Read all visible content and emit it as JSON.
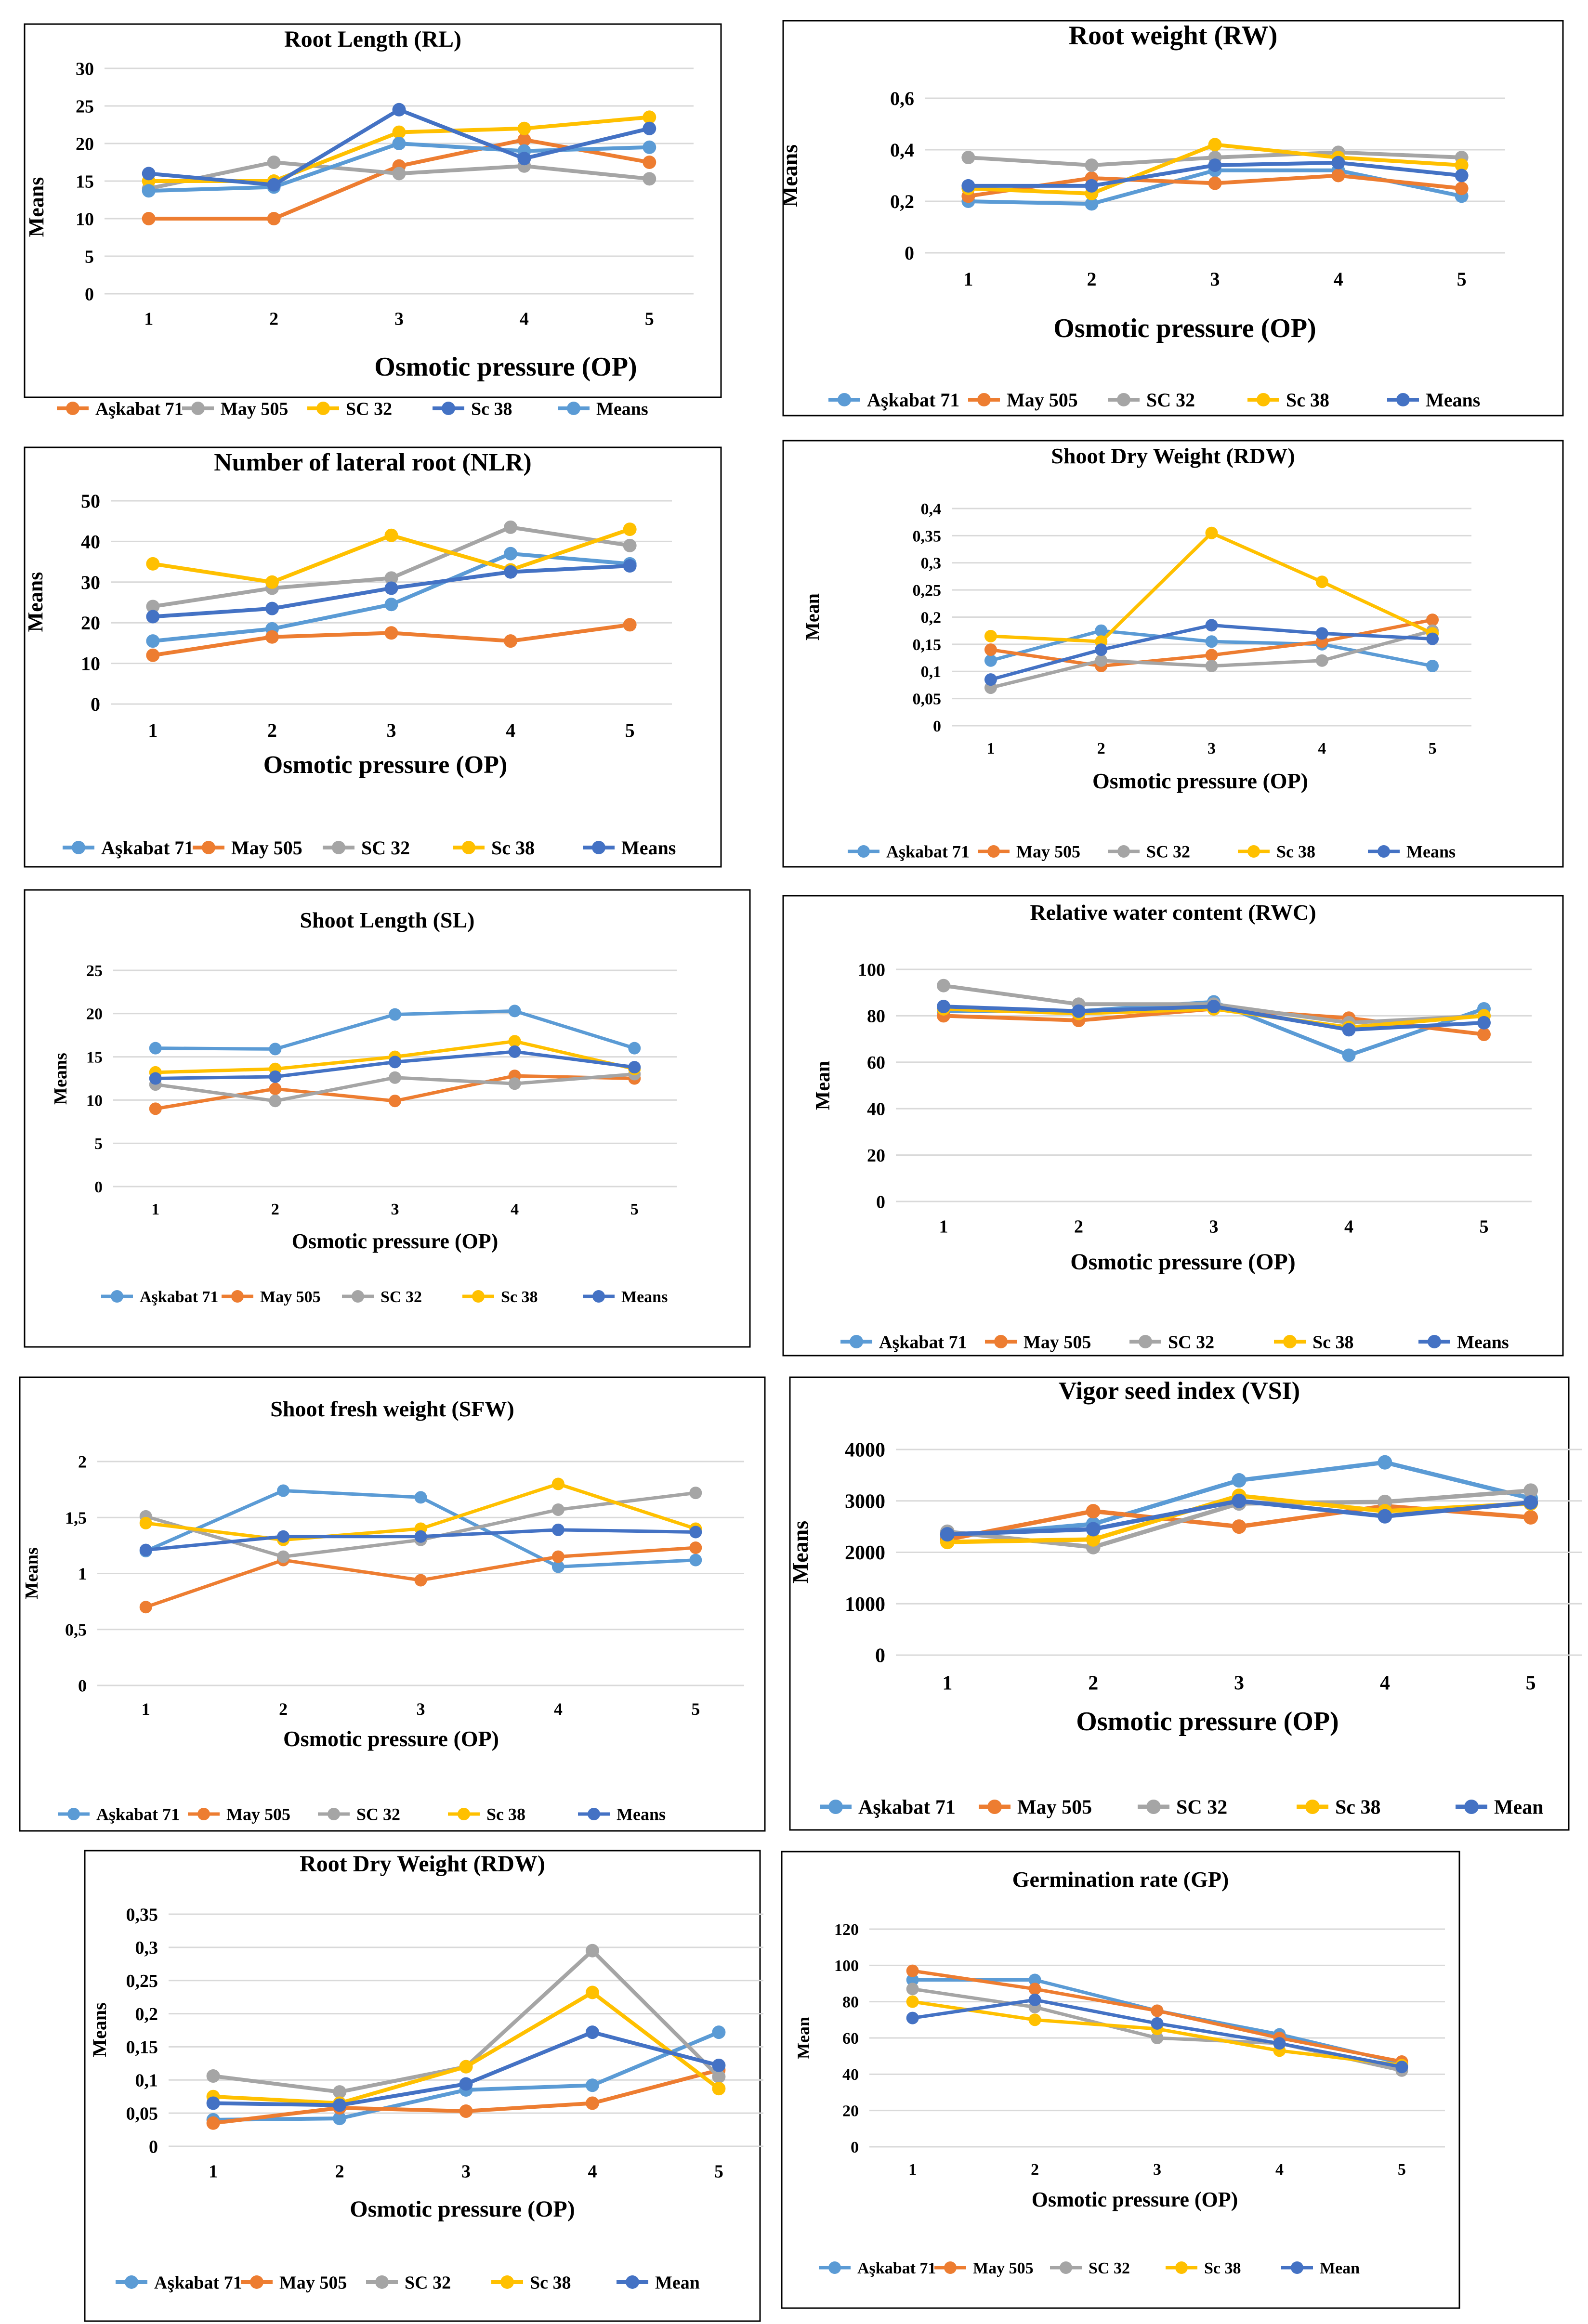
{
  "colors": {
    "Askabat": "#5B9BD5",
    "May": "#ED7D31",
    "SC32": "#A5A5A5",
    "Sc38": "#FFC000",
    "Means": "#4472C4"
  },
  "chart_data": [
    {
      "type": "line",
      "title": "Root Length (RL)",
      "xlabel": "Osmotic pressure (OP)",
      "ylabel": "Means",
      "categories": [
        "1",
        "2",
        "3",
        "4",
        "5"
      ],
      "yticks": [
        "0",
        "5",
        "10",
        "15",
        "20",
        "25",
        "30"
      ],
      "ylim": [
        0,
        30
      ],
      "series": [
        {
          "name": "Aşkabat 71",
          "color": "May",
          "values": [
            10,
            10,
            17,
            20.5,
            17.5
          ]
        },
        {
          "name": "May 505",
          "color": "SC32",
          "values": [
            14,
            17.5,
            16,
            17,
            15.3
          ]
        },
        {
          "name": "SC 32",
          "color": "Sc38",
          "values": [
            15,
            15,
            21.5,
            22,
            23.5
          ]
        },
        {
          "name": "Sc 38",
          "color": "Means",
          "values": [
            16,
            14.5,
            24.5,
            18,
            22
          ]
        },
        {
          "name": "Means",
          "color": "Askabat",
          "values": [
            13.7,
            14.2,
            20,
            19,
            19.5
          ]
        }
      ],
      "draw_order": [
        0,
        1,
        2,
        4,
        3
      ]
    },
    {
      "type": "line",
      "title": "Root weight (RW)",
      "xlabel": "Osmotic pressure (OP)",
      "ylabel": "Means",
      "categories": [
        "1",
        "2",
        "3",
        "4",
        "5"
      ],
      "yticks": [
        "0",
        "0,2",
        "0,4",
        "0,6"
      ],
      "ylim": [
        0,
        0.6
      ],
      "series": [
        {
          "name": "Aşkabat 71",
          "color": "Askabat",
          "values": [
            0.2,
            0.19,
            0.32,
            0.32,
            0.22
          ]
        },
        {
          "name": "May 505",
          "color": "May",
          "values": [
            0.22,
            0.29,
            0.27,
            0.3,
            0.25
          ]
        },
        {
          "name": "SC 32",
          "color": "SC32",
          "values": [
            0.37,
            0.34,
            0.37,
            0.39,
            0.37
          ]
        },
        {
          "name": "Sc 38",
          "color": "Sc38",
          "values": [
            0.25,
            0.23,
            0.42,
            0.37,
            0.34
          ]
        },
        {
          "name": "Means",
          "color": "Means",
          "values": [
            0.26,
            0.26,
            0.34,
            0.35,
            0.3
          ]
        }
      ]
    },
    {
      "type": "line",
      "title": "Number of lateral root (NLR)",
      "xlabel": "Osmotic pressure (OP)",
      "ylabel": "Means",
      "categories": [
        "1",
        "2",
        "3",
        "4",
        "5"
      ],
      "yticks": [
        "0",
        "10",
        "20",
        "30",
        "40",
        "50"
      ],
      "ylim": [
        0,
        50
      ],
      "series": [
        {
          "name": "Aşkabat 71",
          "color": "Askabat",
          "values": [
            15.5,
            18.5,
            24.5,
            37,
            34.5
          ]
        },
        {
          "name": "May 505",
          "color": "May",
          "values": [
            12,
            16.5,
            17.5,
            15.5,
            19.5
          ]
        },
        {
          "name": "SC 32",
          "color": "SC32",
          "values": [
            24,
            28.5,
            31,
            43.5,
            39
          ]
        },
        {
          "name": "Sc 38",
          "color": "Sc38",
          "values": [
            34.5,
            30,
            41.5,
            33,
            43
          ]
        },
        {
          "name": "Means",
          "color": "Means",
          "values": [
            21.5,
            23.5,
            28.5,
            32.5,
            34
          ]
        }
      ]
    },
    {
      "type": "line",
      "title": "Shoot Dry Weight (RDW)",
      "xlabel": "Osmotic pressure (OP)",
      "ylabel": "Mean",
      "categories": [
        "1",
        "2",
        "3",
        "4",
        "5"
      ],
      "yticks": [
        "0",
        "0,05",
        "0,1",
        "0,15",
        "0,2",
        "0,25",
        "0,3",
        "0,35",
        "0,4"
      ],
      "ylim": [
        0,
        0.4
      ],
      "series": [
        {
          "name": "Aşkabat 71",
          "color": "Askabat",
          "values": [
            0.12,
            0.175,
            0.155,
            0.15,
            0.11
          ]
        },
        {
          "name": "May 505",
          "color": "May",
          "values": [
            0.14,
            0.11,
            0.13,
            0.155,
            0.195
          ]
        },
        {
          "name": "SC 32",
          "color": "SC32",
          "values": [
            0.07,
            0.12,
            0.11,
            0.12,
            0.175
          ]
        },
        {
          "name": "Sc 38",
          "color": "Sc38",
          "values": [
            0.165,
            0.155,
            0.355,
            0.265,
            0.17
          ]
        },
        {
          "name": "Means",
          "color": "Means",
          "values": [
            0.085,
            0.14,
            0.185,
            0.17,
            0.16
          ]
        }
      ]
    },
    {
      "type": "line",
      "title": "Shoot Length (SL)",
      "xlabel": "Osmotic pressure (OP)",
      "ylabel": "Means",
      "categories": [
        "1",
        "2",
        "3",
        "4",
        "5"
      ],
      "yticks": [
        "0",
        "5",
        "10",
        "15",
        "20",
        "25"
      ],
      "ylim": [
        0,
        25
      ],
      "series": [
        {
          "name": "Aşkabat 71",
          "color": "Askabat",
          "values": [
            16,
            15.9,
            19.9,
            20.3,
            16
          ]
        },
        {
          "name": "May 505",
          "color": "May",
          "values": [
            9,
            11.3,
            9.9,
            12.8,
            12.5
          ]
        },
        {
          "name": "SC 32",
          "color": "SC32",
          "values": [
            11.8,
            9.9,
            12.6,
            11.9,
            13
          ]
        },
        {
          "name": "Sc 38",
          "color": "Sc38",
          "values": [
            13.2,
            13.6,
            15,
            16.8,
            13.6
          ]
        },
        {
          "name": "Means",
          "color": "Means",
          "values": [
            12.5,
            12.7,
            14.4,
            15.6,
            13.8
          ]
        }
      ]
    },
    {
      "type": "line",
      "title": "Relative water content (RWC)",
      "xlabel": "Osmotic pressure (OP)",
      "ylabel": "Mean",
      "categories": [
        "1",
        "2",
        "3",
        "4",
        "5"
      ],
      "yticks": [
        "0",
        "20",
        "40",
        "60",
        "80",
        "100"
      ],
      "ylim": [
        0,
        100
      ],
      "series": [
        {
          "name": "Aşkabat 71",
          "color": "Askabat",
          "values": [
            82,
            82,
            86,
            63,
            83
          ]
        },
        {
          "name": "May 505",
          "color": "May",
          "values": [
            80,
            78,
            83,
            79,
            72
          ]
        },
        {
          "name": "SC 32",
          "color": "SC32",
          "values": [
            93,
            85,
            85,
            77,
            80
          ]
        },
        {
          "name": "Sc 38",
          "color": "Sc38",
          "values": [
            83,
            81,
            83,
            75,
            80
          ]
        },
        {
          "name": "Means",
          "color": "Means",
          "values": [
            84,
            82,
            84,
            74,
            77
          ]
        }
      ]
    },
    {
      "type": "line",
      "title": "Shoot fresh weight (SFW)",
      "xlabel": "Osmotic pressure (OP)",
      "ylabel": "Means",
      "categories": [
        "1",
        "2",
        "3",
        "4",
        "5"
      ],
      "yticks": [
        "0",
        "0,5",
        "1",
        "1,5",
        "2"
      ],
      "ylim": [
        0,
        2
      ],
      "series": [
        {
          "name": "Aşkabat 71",
          "color": "Askabat",
          "values": [
            1.2,
            1.74,
            1.68,
            1.06,
            1.12
          ]
        },
        {
          "name": "May 505",
          "color": "May",
          "values": [
            0.7,
            1.12,
            0.94,
            1.15,
            1.23
          ]
        },
        {
          "name": "SC 32",
          "color": "SC32",
          "values": [
            1.51,
            1.15,
            1.3,
            1.57,
            1.72
          ]
        },
        {
          "name": "Sc 38",
          "color": "Sc38",
          "values": [
            1.45,
            1.3,
            1.4,
            1.8,
            1.4
          ]
        },
        {
          "name": "Means",
          "color": "Means",
          "values": [
            1.21,
            1.33,
            1.33,
            1.39,
            1.37
          ]
        }
      ]
    },
    {
      "type": "line",
      "title": "Vigor seed index (VSI)",
      "xlabel": "Osmotic pressure (OP)",
      "ylabel": "Means",
      "categories": [
        "1",
        "2",
        "3",
        "4",
        "5"
      ],
      "yticks": [
        "0",
        "1000",
        "2000",
        "3000",
        "4000"
      ],
      "ylim": [
        0,
        4000
      ],
      "series": [
        {
          "name": "Aşkabat 71",
          "color": "Askabat",
          "values": [
            2300,
            2550,
            3400,
            3750,
            3050
          ]
        },
        {
          "name": "May 505",
          "color": "May",
          "values": [
            2250,
            2800,
            2500,
            2900,
            2680
          ]
        },
        {
          "name": "SC 32",
          "color": "SC32",
          "values": [
            2400,
            2100,
            2950,
            2980,
            3200
          ]
        },
        {
          "name": "Sc 38",
          "color": "Sc38",
          "values": [
            2200,
            2250,
            3100,
            2800,
            2950
          ]
        },
        {
          "name": "Mean",
          "color": "Means",
          "values": [
            2350,
            2450,
            3000,
            2700,
            2970
          ]
        }
      ]
    },
    {
      "type": "line",
      "title": "Root Dry Weight (RDW)",
      "xlabel": "Osmotic pressure (OP)",
      "ylabel": "Means",
      "categories": [
        "1",
        "2",
        "3",
        "4",
        "5"
      ],
      "yticks": [
        "0",
        "0,05",
        "0,1",
        "0,15",
        "0,2",
        "0,25",
        "0,3",
        "0,35"
      ],
      "ylim": [
        0,
        0.35
      ],
      "series": [
        {
          "name": "Aşkabat 71",
          "color": "Askabat",
          "values": [
            0.04,
            0.042,
            0.085,
            0.092,
            0.172
          ]
        },
        {
          "name": "May 505",
          "color": "May",
          "values": [
            0.035,
            0.058,
            0.053,
            0.065,
            0.115
          ]
        },
        {
          "name": "SC 32",
          "color": "SC32",
          "values": [
            0.106,
            0.082,
            0.12,
            0.295,
            0.105
          ]
        },
        {
          "name": "Sc 38",
          "color": "Sc38",
          "values": [
            0.075,
            0.065,
            0.12,
            0.232,
            0.087
          ]
        },
        {
          "name": "Mean",
          "color": "Means",
          "values": [
            0.065,
            0.062,
            0.094,
            0.172,
            0.122
          ]
        }
      ]
    },
    {
      "type": "line",
      "title": "Germination rate (GP)",
      "xlabel": "Osmotic pressure (OP)",
      "ylabel": "Mean",
      "categories": [
        "1",
        "2",
        "3",
        "4",
        "5"
      ],
      "yticks": [
        "0",
        "20",
        "40",
        "60",
        "80",
        "100",
        "120"
      ],
      "ylim": [
        0,
        120
      ],
      "series": [
        {
          "name": "Aşkabat 71",
          "color": "Askabat",
          "values": [
            92,
            92,
            75,
            62,
            46
          ]
        },
        {
          "name": "May 505",
          "color": "May",
          "values": [
            97,
            87,
            75,
            60,
            47
          ]
        },
        {
          "name": "SC 32",
          "color": "SC32",
          "values": [
            87,
            77,
            60,
            57,
            42
          ]
        },
        {
          "name": "Sc 38",
          "color": "Sc38",
          "values": [
            80,
            70,
            65,
            53,
            45
          ]
        },
        {
          "name": "Mean",
          "color": "Means",
          "values": [
            71,
            81,
            68,
            57,
            44
          ]
        }
      ]
    }
  ]
}
